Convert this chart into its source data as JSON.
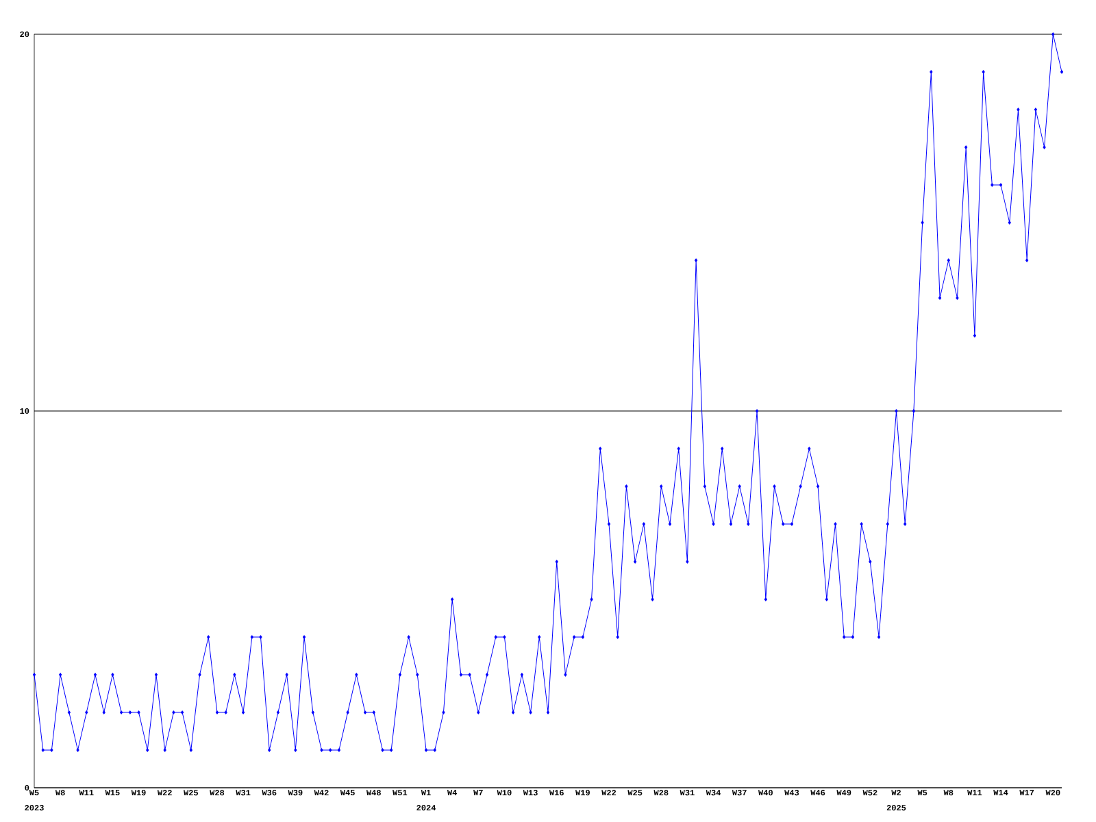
{
  "chart_data": {
    "type": "line",
    "categories": [
      "W5",
      null,
      null,
      "W8",
      null,
      null,
      "W11",
      null,
      null,
      "W15",
      null,
      null,
      "W19",
      null,
      null,
      "W22",
      null,
      null,
      "W25",
      null,
      null,
      "W28",
      null,
      null,
      "W31",
      null,
      null,
      "W36",
      null,
      null,
      "W39",
      null,
      null,
      "W42",
      null,
      null,
      "W45",
      null,
      null,
      "W48",
      null,
      null,
      "W51",
      null,
      null,
      "W1",
      null,
      null,
      "W4",
      null,
      null,
      "W7",
      null,
      null,
      "W10",
      null,
      null,
      "W13",
      null,
      null,
      "W16",
      null,
      null,
      "W19",
      null,
      null,
      "W22",
      null,
      null,
      "W25",
      null,
      null,
      "W28",
      null,
      null,
      "W31",
      null,
      null,
      "W34",
      null,
      null,
      "W37",
      null,
      null,
      "W40",
      null,
      null,
      "W43",
      null,
      null,
      "W46",
      null,
      null,
      "W49",
      null,
      null,
      "W52",
      null,
      null,
      "W2",
      null,
      null,
      "W5",
      null,
      null,
      "W8",
      null,
      null,
      "W11",
      null,
      null,
      "W14",
      null,
      null,
      "W17",
      null,
      null,
      "W20",
      null
    ],
    "series": [
      {
        "color": "#0000ff",
        "values": [
          3,
          1,
          1,
          3,
          2,
          1,
          2,
          3,
          2,
          3,
          2,
          2,
          2,
          1,
          3,
          1,
          2,
          2,
          1,
          3,
          4,
          2,
          2,
          3,
          2,
          4,
          4,
          1,
          2,
          3,
          1,
          4,
          2,
          1,
          1,
          1,
          2,
          3,
          2,
          2,
          1,
          1,
          3,
          4,
          3,
          1,
          1,
          2,
          5,
          3,
          3,
          2,
          3,
          4,
          4,
          2,
          3,
          2,
          4,
          2,
          6,
          3,
          4,
          4,
          5,
          9,
          7,
          4,
          8,
          6,
          7,
          5,
          8,
          7,
          9,
          6,
          14,
          8,
          7,
          9,
          7,
          8,
          7,
          10,
          5,
          8,
          7,
          7,
          8,
          9,
          8,
          5,
          7,
          4,
          4,
          7,
          6,
          4,
          7,
          10,
          7,
          10,
          15,
          19,
          13,
          14,
          13,
          17,
          12,
          19,
          16,
          16,
          15,
          18,
          14,
          18,
          17,
          20,
          19
        ]
      }
    ],
    "ylim": [
      0,
      20
    ],
    "yticks": [
      0,
      10,
      20
    ],
    "grid": "y",
    "marker": "diamond",
    "line_style": "solid",
    "annotations": [
      "2023",
      "2024",
      "2025"
    ]
  }
}
